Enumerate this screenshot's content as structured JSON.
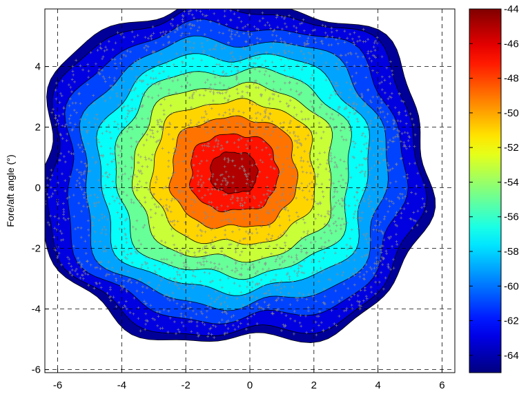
{
  "chart_data": {
    "type": "contour",
    "title": "",
    "xlabel": "",
    "ylabel": "Fore/aft angle (°)",
    "xlim": [
      -6.4,
      6.4
    ],
    "ylim": [
      -6.1,
      5.9
    ],
    "x_ticks": [
      -6,
      -4,
      -2,
      0,
      2,
      4,
      6
    ],
    "y_ticks": [
      -6,
      -4,
      -2,
      0,
      2,
      4
    ],
    "x_tick_labels": [
      "-6",
      "-4",
      "-2",
      "0",
      "2",
      "4",
      "6"
    ],
    "y_tick_labels": [
      "-6",
      "-4",
      "-2",
      "0",
      "2",
      "4"
    ],
    "grid": true,
    "grid_style": "dashed",
    "colormap": "jet",
    "colorbar": {
      "range": [
        -65,
        -44
      ],
      "ticks": [
        -44,
        -46,
        -48,
        -50,
        -52,
        -54,
        -56,
        -58,
        -60,
        -62,
        -64
      ],
      "tick_labels": [
        "-44",
        "-46",
        "-48",
        "-50",
        "-52",
        "-54",
        "-56",
        "-58",
        "-60",
        "-62",
        "-64"
      ]
    },
    "contour_levels": [
      -64,
      -62,
      -60,
      -58,
      -56,
      -54,
      -52,
      -50,
      -48,
      -46,
      -44
    ],
    "peak": {
      "x": -0.5,
      "y": 0.5,
      "value": -44
    },
    "markers": {
      "symbol": "+",
      "color": "#8c8c8c"
    }
  }
}
